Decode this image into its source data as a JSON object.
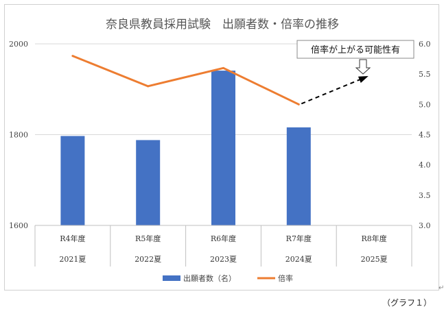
{
  "chart_data": {
    "type": "bar+line",
    "title": "奈良県教員採用試験　出願者数・倍率の推移",
    "categories": [
      {
        "label": "R4年度",
        "sublabel": "2021夏"
      },
      {
        "label": "R5年度",
        "sublabel": "2022夏"
      },
      {
        "label": "R6年度",
        "sublabel": "2023夏"
      },
      {
        "label": "R7年度",
        "sublabel": "2024夏"
      },
      {
        "label": "R8年度",
        "sublabel": "2025夏"
      }
    ],
    "series": [
      {
        "name": "出願者数（名）",
        "type": "bar",
        "axis": "left",
        "color": "#4472c4",
        "values": [
          1797,
          1788,
          1941,
          1816,
          null
        ]
      },
      {
        "name": "倍率",
        "type": "line",
        "axis": "right",
        "color": "#ed7d31",
        "values": [
          5.8,
          5.3,
          5.6,
          5.0,
          null
        ]
      }
    ],
    "projection": {
      "from": {
        "category": 3,
        "value": 5.0
      },
      "to": {
        "category": 4,
        "value": 5.45
      },
      "style": "dashed-arrow",
      "color": "#000000"
    },
    "y_left": {
      "range": [
        1600,
        2000
      ],
      "ticks": [
        1600,
        1800,
        2000
      ]
    },
    "y_right": {
      "range": [
        3.0,
        6.0
      ],
      "ticks": [
        "3.0",
        "3.5",
        "4.0",
        "4.5",
        "5.0",
        "5.5",
        "6.0"
      ]
    },
    "grid": {
      "horizontal": true,
      "values_left": [
        2000,
        1800
      ]
    },
    "callout": {
      "text": "倍率が上がる可能性有",
      "icon": "down-arrow-icon"
    },
    "legend_position": "bottom"
  },
  "caption": "（グラフ１）",
  "tail_mark": "↵"
}
